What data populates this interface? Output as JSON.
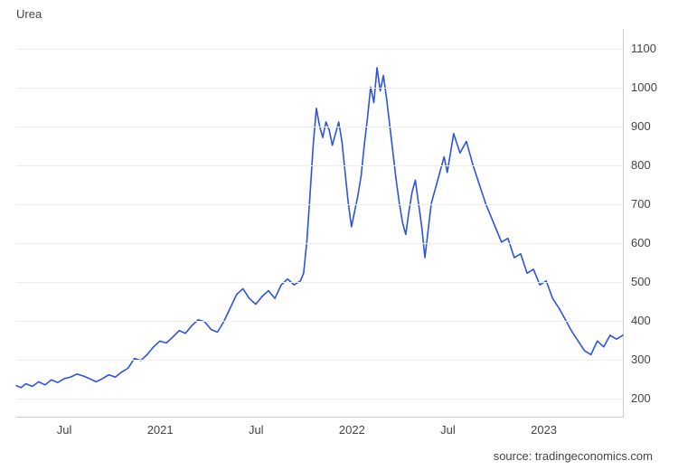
{
  "chart": {
    "type": "line",
    "title": "Urea",
    "source_label": "source: tradingeconomics.com",
    "line_color": "#2c53e0",
    "line_width": 1.6,
    "background_color": "#ffffff",
    "grid_color": "#eeeeee",
    "axis_color": "#cccccc",
    "label_color": "#444444",
    "title_fontsize": 13,
    "label_fontsize": 13,
    "ylim": [
      150,
      1150
    ],
    "yticks": [
      200,
      300,
      400,
      500,
      600,
      700,
      800,
      900,
      1000,
      1100
    ],
    "x_range_months": 38,
    "xticks": [
      {
        "month_index": 3,
        "label": "Jul"
      },
      {
        "month_index": 9,
        "label": "2021"
      },
      {
        "month_index": 15,
        "label": "Jul"
      },
      {
        "month_index": 21,
        "label": "2022"
      },
      {
        "month_index": 27,
        "label": "Jul"
      },
      {
        "month_index": 33,
        "label": "2023"
      }
    ],
    "series": [
      {
        "m": 0.0,
        "v": 230
      },
      {
        "m": 0.3,
        "v": 225
      },
      {
        "m": 0.6,
        "v": 235
      },
      {
        "m": 1.0,
        "v": 228
      },
      {
        "m": 1.4,
        "v": 240
      },
      {
        "m": 1.8,
        "v": 232
      },
      {
        "m": 2.2,
        "v": 245
      },
      {
        "m": 2.6,
        "v": 238
      },
      {
        "m": 3.0,
        "v": 248
      },
      {
        "m": 3.4,
        "v": 252
      },
      {
        "m": 3.8,
        "v": 260
      },
      {
        "m": 4.2,
        "v": 255
      },
      {
        "m": 4.6,
        "v": 248
      },
      {
        "m": 5.0,
        "v": 240
      },
      {
        "m": 5.4,
        "v": 248
      },
      {
        "m": 5.8,
        "v": 258
      },
      {
        "m": 6.2,
        "v": 252
      },
      {
        "m": 6.6,
        "v": 265
      },
      {
        "m": 7.0,
        "v": 275
      },
      {
        "m": 7.4,
        "v": 300
      },
      {
        "m": 7.8,
        "v": 295
      },
      {
        "m": 8.2,
        "v": 310
      },
      {
        "m": 8.6,
        "v": 330
      },
      {
        "m": 9.0,
        "v": 345
      },
      {
        "m": 9.4,
        "v": 340
      },
      {
        "m": 9.8,
        "v": 355
      },
      {
        "m": 10.2,
        "v": 372
      },
      {
        "m": 10.6,
        "v": 365
      },
      {
        "m": 11.0,
        "v": 385
      },
      {
        "m": 11.4,
        "v": 400
      },
      {
        "m": 11.8,
        "v": 395
      },
      {
        "m": 12.2,
        "v": 375
      },
      {
        "m": 12.6,
        "v": 368
      },
      {
        "m": 13.0,
        "v": 395
      },
      {
        "m": 13.4,
        "v": 430
      },
      {
        "m": 13.8,
        "v": 465
      },
      {
        "m": 14.2,
        "v": 480
      },
      {
        "m": 14.6,
        "v": 455
      },
      {
        "m": 15.0,
        "v": 440
      },
      {
        "m": 15.4,
        "v": 460
      },
      {
        "m": 15.8,
        "v": 475
      },
      {
        "m": 16.2,
        "v": 455
      },
      {
        "m": 16.6,
        "v": 490
      },
      {
        "m": 17.0,
        "v": 505
      },
      {
        "m": 17.4,
        "v": 490
      },
      {
        "m": 17.8,
        "v": 500
      },
      {
        "m": 18.0,
        "v": 520
      },
      {
        "m": 18.2,
        "v": 600
      },
      {
        "m": 18.4,
        "v": 720
      },
      {
        "m": 18.6,
        "v": 850
      },
      {
        "m": 18.8,
        "v": 945
      },
      {
        "m": 19.0,
        "v": 900
      },
      {
        "m": 19.2,
        "v": 870
      },
      {
        "m": 19.4,
        "v": 910
      },
      {
        "m": 19.6,
        "v": 890
      },
      {
        "m": 19.8,
        "v": 850
      },
      {
        "m": 20.0,
        "v": 880
      },
      {
        "m": 20.2,
        "v": 910
      },
      {
        "m": 20.4,
        "v": 860
      },
      {
        "m": 20.6,
        "v": 780
      },
      {
        "m": 20.8,
        "v": 700
      },
      {
        "m": 21.0,
        "v": 640
      },
      {
        "m": 21.2,
        "v": 680
      },
      {
        "m": 21.4,
        "v": 720
      },
      {
        "m": 21.6,
        "v": 770
      },
      {
        "m": 21.8,
        "v": 850
      },
      {
        "m": 22.0,
        "v": 920
      },
      {
        "m": 22.2,
        "v": 1000
      },
      {
        "m": 22.4,
        "v": 960
      },
      {
        "m": 22.6,
        "v": 1050
      },
      {
        "m": 22.8,
        "v": 990
      },
      {
        "m": 23.0,
        "v": 1030
      },
      {
        "m": 23.2,
        "v": 970
      },
      {
        "m": 23.4,
        "v": 900
      },
      {
        "m": 23.6,
        "v": 830
      },
      {
        "m": 23.8,
        "v": 760
      },
      {
        "m": 24.0,
        "v": 700
      },
      {
        "m": 24.2,
        "v": 650
      },
      {
        "m": 24.4,
        "v": 620
      },
      {
        "m": 24.6,
        "v": 680
      },
      {
        "m": 24.8,
        "v": 730
      },
      {
        "m": 25.0,
        "v": 760
      },
      {
        "m": 25.2,
        "v": 700
      },
      {
        "m": 25.4,
        "v": 640
      },
      {
        "m": 25.6,
        "v": 560
      },
      {
        "m": 25.8,
        "v": 630
      },
      {
        "m": 26.0,
        "v": 700
      },
      {
        "m": 26.4,
        "v": 760
      },
      {
        "m": 26.8,
        "v": 820
      },
      {
        "m": 27.0,
        "v": 780
      },
      {
        "m": 27.4,
        "v": 880
      },
      {
        "m": 27.8,
        "v": 830
      },
      {
        "m": 28.2,
        "v": 860
      },
      {
        "m": 28.6,
        "v": 800
      },
      {
        "m": 29.0,
        "v": 750
      },
      {
        "m": 29.4,
        "v": 700
      },
      {
        "m": 29.8,
        "v": 660
      },
      {
        "m": 30.0,
        "v": 640
      },
      {
        "m": 30.4,
        "v": 600
      },
      {
        "m": 30.8,
        "v": 610
      },
      {
        "m": 31.2,
        "v": 560
      },
      {
        "m": 31.6,
        "v": 570
      },
      {
        "m": 32.0,
        "v": 520
      },
      {
        "m": 32.4,
        "v": 530
      },
      {
        "m": 32.8,
        "v": 490
      },
      {
        "m": 33.2,
        "v": 500
      },
      {
        "m": 33.6,
        "v": 455
      },
      {
        "m": 34.0,
        "v": 430
      },
      {
        "m": 34.4,
        "v": 400
      },
      {
        "m": 34.8,
        "v": 370
      },
      {
        "m": 35.2,
        "v": 345
      },
      {
        "m": 35.6,
        "v": 320
      },
      {
        "m": 36.0,
        "v": 310
      },
      {
        "m": 36.4,
        "v": 345
      },
      {
        "m": 36.8,
        "v": 330
      },
      {
        "m": 37.2,
        "v": 360
      },
      {
        "m": 37.6,
        "v": 350
      },
      {
        "m": 38.0,
        "v": 360
      }
    ]
  }
}
